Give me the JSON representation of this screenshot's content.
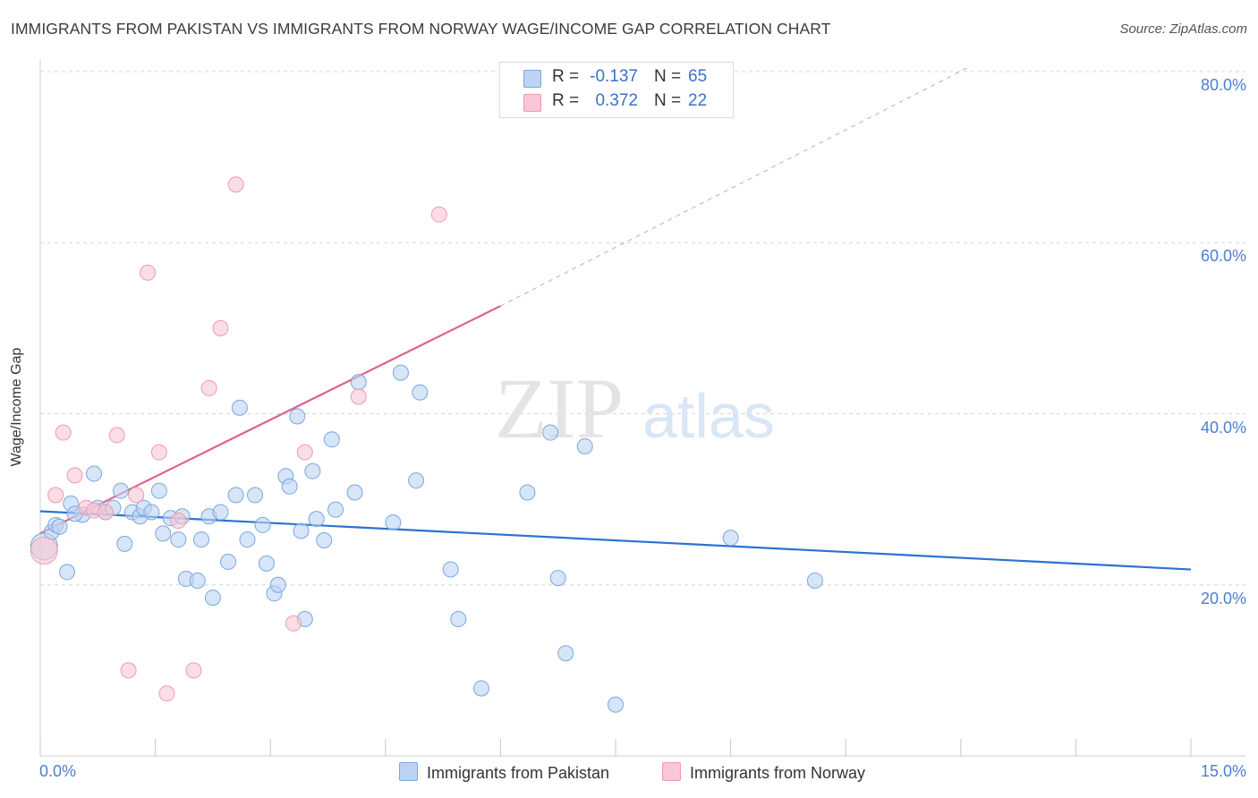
{
  "title": "IMMIGRANTS FROM PAKISTAN VS IMMIGRANTS FROM NORWAY WAGE/INCOME GAP CORRELATION CHART",
  "source": "Source: ZipAtlas.com",
  "watermark": {
    "zip": "ZIP",
    "atlas": "atlas"
  },
  "colors": {
    "pakistan_fill": "#bcd4f4",
    "pakistan_stroke": "#7aa6e0",
    "pakistan_line": "#2b72d2",
    "norway_fill": "#f8c6d4",
    "norway_stroke": "#ee9ab2",
    "norway_line": "#e0628c",
    "grid": "#d6d6d6",
    "tick_label": "#4a7fd0"
  },
  "stats": [
    {
      "r_label": "R =",
      "r_value": "-0.137",
      "n_label": "N =",
      "n_value": "65"
    },
    {
      "r_label": "R =",
      "r_value": "0.372",
      "n_label": "N =",
      "n_value": "22"
    }
  ],
  "chart_data": {
    "type": "scatter",
    "title": "IMMIGRANTS FROM PAKISTAN VS IMMIGRANTS FROM NORWAY WAGE/INCOME GAP CORRELATION CHART",
    "xlabel": "",
    "ylabel": "Wage/Income Gap",
    "xlim": [
      0,
      15
    ],
    "ylim": [
      0,
      80
    ],
    "x_tick_labels": [
      "0.0%",
      "15.0%"
    ],
    "y_tick_labels": [
      "20.0%",
      "40.0%",
      "60.0%",
      "80.0%"
    ],
    "y_ticks": [
      20,
      40,
      60,
      80
    ],
    "grid": true,
    "legend": [
      "Immigrants from Pakistan",
      "Immigrants from Norway"
    ],
    "series": [
      {
        "name": "Immigrants from Pakistan",
        "points": [
          {
            "x": 0.05,
            "y": 24.5,
            "s": "lg"
          },
          {
            "x": 0.15,
            "y": 26.2
          },
          {
            "x": 0.2,
            "y": 27
          },
          {
            "x": 0.25,
            "y": 26.8
          },
          {
            "x": 0.35,
            "y": 21.5
          },
          {
            "x": 0.4,
            "y": 29.5
          },
          {
            "x": 0.55,
            "y": 28.2
          },
          {
            "x": 0.7,
            "y": 33
          },
          {
            "x": 0.75,
            "y": 29
          },
          {
            "x": 0.85,
            "y": 28.5
          },
          {
            "x": 0.95,
            "y": 29
          },
          {
            "x": 1.05,
            "y": 31
          },
          {
            "x": 1.1,
            "y": 24.8
          },
          {
            "x": 1.2,
            "y": 28.5
          },
          {
            "x": 1.3,
            "y": 28
          },
          {
            "x": 1.35,
            "y": 29
          },
          {
            "x": 1.45,
            "y": 28.5
          },
          {
            "x": 1.55,
            "y": 31
          },
          {
            "x": 1.6,
            "y": 26
          },
          {
            "x": 1.7,
            "y": 27.8
          },
          {
            "x": 1.8,
            "y": 25.3
          },
          {
            "x": 1.85,
            "y": 28
          },
          {
            "x": 1.9,
            "y": 20.7
          },
          {
            "x": 2.05,
            "y": 20.5
          },
          {
            "x": 2.1,
            "y": 25.3
          },
          {
            "x": 2.2,
            "y": 28
          },
          {
            "x": 2.25,
            "y": 18.5
          },
          {
            "x": 2.35,
            "y": 28.5
          },
          {
            "x": 2.45,
            "y": 22.7
          },
          {
            "x": 2.55,
            "y": 30.5
          },
          {
            "x": 2.6,
            "y": 40.7
          },
          {
            "x": 2.7,
            "y": 25.3
          },
          {
            "x": 2.8,
            "y": 30.5
          },
          {
            "x": 2.9,
            "y": 27
          },
          {
            "x": 2.95,
            "y": 22.5
          },
          {
            "x": 3.05,
            "y": 19
          },
          {
            "x": 3.1,
            "y": 20
          },
          {
            "x": 3.2,
            "y": 32.7
          },
          {
            "x": 3.25,
            "y": 31.5
          },
          {
            "x": 3.35,
            "y": 39.7
          },
          {
            "x": 3.4,
            "y": 26.3
          },
          {
            "x": 3.45,
            "y": 16
          },
          {
            "x": 3.55,
            "y": 33.3
          },
          {
            "x": 3.6,
            "y": 27.7
          },
          {
            "x": 3.7,
            "y": 25.2
          },
          {
            "x": 3.8,
            "y": 37
          },
          {
            "x": 3.85,
            "y": 28.8
          },
          {
            "x": 4.1,
            "y": 30.8
          },
          {
            "x": 4.15,
            "y": 43.7
          },
          {
            "x": 4.6,
            "y": 27.3
          },
          {
            "x": 4.7,
            "y": 44.8
          },
          {
            "x": 4.9,
            "y": 32.2
          },
          {
            "x": 4.95,
            "y": 42.5
          },
          {
            "x": 5.35,
            "y": 21.8
          },
          {
            "x": 5.45,
            "y": 16
          },
          {
            "x": 5.75,
            "y": 7.9
          },
          {
            "x": 6.35,
            "y": 30.8
          },
          {
            "x": 6.65,
            "y": 37.8
          },
          {
            "x": 6.75,
            "y": 20.8
          },
          {
            "x": 6.85,
            "y": 12
          },
          {
            "x": 7.1,
            "y": 36.2
          },
          {
            "x": 7.5,
            "y": 6
          },
          {
            "x": 9.0,
            "y": 25.5
          },
          {
            "x": 10.1,
            "y": 20.5
          },
          {
            "x": 0.45,
            "y": 28.3
          }
        ],
        "trend": {
          "x0": 0,
          "y0": 28.6,
          "x1": 15,
          "y1": 21.8,
          "dashed_to": 15
        }
      },
      {
        "name": "Immigrants from Norway",
        "points": [
          {
            "x": 0.05,
            "y": 24,
            "s": "lg"
          },
          {
            "x": 0.2,
            "y": 30.5
          },
          {
            "x": 0.3,
            "y": 37.8
          },
          {
            "x": 0.45,
            "y": 32.8
          },
          {
            "x": 0.6,
            "y": 29
          },
          {
            "x": 0.7,
            "y": 28.7
          },
          {
            "x": 0.85,
            "y": 28.5
          },
          {
            "x": 1.0,
            "y": 37.5
          },
          {
            "x": 1.15,
            "y": 10
          },
          {
            "x": 1.25,
            "y": 30.5
          },
          {
            "x": 1.4,
            "y": 56.5
          },
          {
            "x": 1.55,
            "y": 35.5
          },
          {
            "x": 1.65,
            "y": 7.3
          },
          {
            "x": 1.8,
            "y": 27.5
          },
          {
            "x": 2.0,
            "y": 10
          },
          {
            "x": 2.2,
            "y": 43
          },
          {
            "x": 2.35,
            "y": 50
          },
          {
            "x": 2.55,
            "y": 66.8
          },
          {
            "x": 3.3,
            "y": 15.5
          },
          {
            "x": 3.45,
            "y": 35.5
          },
          {
            "x": 4.15,
            "y": 42
          },
          {
            "x": 5.2,
            "y": 63.3
          }
        ],
        "trend": {
          "x0": 0,
          "y0": 26,
          "x1": 6.0,
          "y1": 52.6,
          "dashed_to": 12.1,
          "dashed_y": 80.5
        }
      }
    ]
  }
}
